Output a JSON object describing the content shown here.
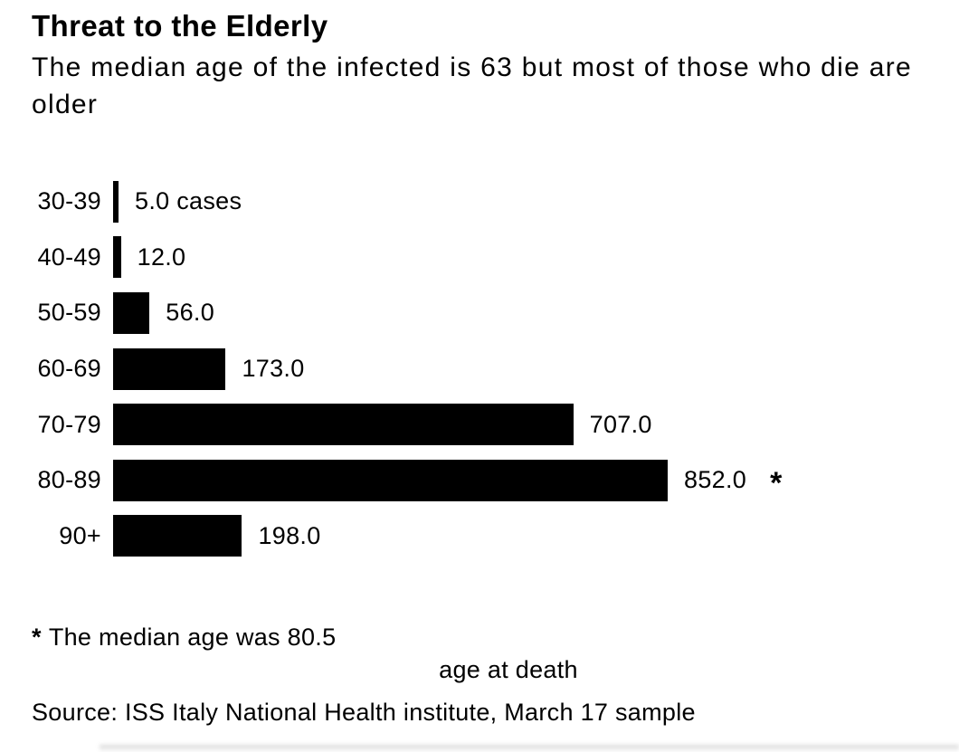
{
  "header": {
    "title": "Threat to the Elderly",
    "subtitle": "The median age of the infected is 63 but most of those who die are older"
  },
  "chart_data": {
    "type": "bar",
    "orientation": "horizontal",
    "title": "Threat to the Elderly",
    "subtitle": "The median age of the infected is 63 but most of those who die are older",
    "categories": [
      "30-39",
      "40-49",
      "50-59",
      "60-69",
      "70-79",
      "80-89",
      "90+"
    ],
    "values": [
      5.0,
      12.0,
      56.0,
      173.0,
      707.0,
      852.0,
      198.0
    ],
    "value_labels": [
      "5.0 cases",
      "12.0",
      "56.0",
      "173.0",
      "707.0",
      "852.0",
      "198.0"
    ],
    "unit": "cases",
    "annotated_category": "80-89",
    "annotation_marker": "*",
    "xlabel": "age at death",
    "ylabel": "",
    "xlim": [
      0,
      852
    ],
    "grid": false,
    "legend": false,
    "bar_color": "#000000",
    "background_color": "#ffffff",
    "text_color": "#000000"
  },
  "footnote": {
    "marker": "*",
    "text": "The median age was 80.5"
  },
  "axis": {
    "xlabel": "age at death"
  },
  "source": "Source: ISS Italy National Health institute, March 17 sample"
}
